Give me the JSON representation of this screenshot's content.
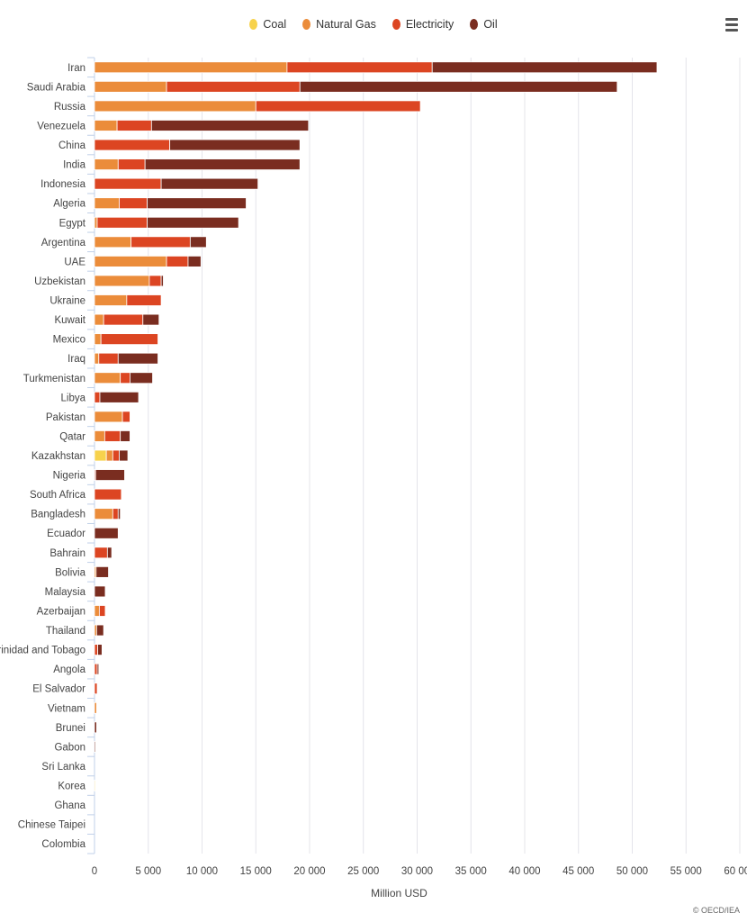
{
  "chart_data": {
    "type": "bar",
    "orientation": "horizontal",
    "stacked": true,
    "xlabel": "Million USD",
    "xlim": [
      0,
      60000
    ],
    "xticks": [
      "0",
      "5 000",
      "10 000",
      "15 000",
      "20 000",
      "25 000",
      "30 000",
      "35 000",
      "40 000",
      "45 000",
      "50 000",
      "55 000",
      "60 000"
    ],
    "grid": true,
    "legend_placement": "top",
    "categories": [
      "Iran",
      "Saudi Arabia",
      "Russia",
      "Venezuela",
      "China",
      "India",
      "Indonesia",
      "Algeria",
      "Egypt",
      "Argentina",
      "UAE",
      "Uzbekistan",
      "Ukraine",
      "Kuwait",
      "Mexico",
      "Iraq",
      "Turkmenistan",
      "Libya",
      "Pakistan",
      "Qatar",
      "Kazakhstan",
      "Nigeria",
      "South Africa",
      "Bangladesh",
      "Ecuador",
      "Bahrain",
      "Bolivia",
      "Malaysia",
      "Azerbaijan",
      "Thailand",
      "Trinidad and Tobago",
      "Angola",
      "El Salvador",
      "Vietnam",
      "Brunei",
      "Gabon",
      "Sri Lanka",
      "Korea",
      "Ghana",
      "Chinese Taipei",
      "Colombia"
    ],
    "series": [
      {
        "name": "Coal",
        "color": "#f7d24c",
        "values": [
          0,
          0,
          0,
          0,
          0,
          0,
          0,
          0,
          0,
          0,
          0,
          0,
          0,
          0,
          0,
          0,
          0,
          0,
          0,
          0,
          1100,
          0,
          0,
          0,
          0,
          0,
          0,
          0,
          0,
          0,
          0,
          0,
          0,
          0,
          0,
          0,
          0,
          50,
          0,
          0,
          0
        ]
      },
      {
        "name": "Natural Gas",
        "color": "#eb8c3a",
        "values": [
          17900,
          6700,
          15000,
          2100,
          0,
          2200,
          0,
          2300,
          250,
          3400,
          6700,
          5100,
          3000,
          850,
          600,
          400,
          2400,
          0,
          2600,
          950,
          600,
          0,
          0,
          1700,
          0,
          0,
          150,
          0,
          450,
          200,
          0,
          0,
          0,
          200,
          0,
          0,
          0,
          0,
          0,
          0,
          0
        ]
      },
      {
        "name": "Electricity",
        "color": "#dc4522",
        "values": [
          13500,
          12400,
          15300,
          3200,
          7000,
          2500,
          6200,
          2600,
          4650,
          5500,
          2000,
          1100,
          3200,
          3650,
          5300,
          1800,
          900,
          500,
          700,
          1450,
          600,
          100,
          2500,
          500,
          0,
          1200,
          0,
          0,
          550,
          0,
          300,
          250,
          250,
          0,
          0,
          0,
          0,
          0,
          0,
          0,
          0
        ]
      },
      {
        "name": "Oil",
        "color": "#7a2d20",
        "values": [
          20900,
          29500,
          0,
          14600,
          12100,
          14400,
          9000,
          9200,
          8500,
          1500,
          1200,
          200,
          0,
          1500,
          0,
          3700,
          2100,
          3600,
          0,
          900,
          800,
          2700,
          0,
          200,
          2200,
          400,
          1150,
          1000,
          0,
          650,
          400,
          150,
          0,
          0,
          200,
          100,
          0,
          0,
          0,
          0,
          0
        ]
      }
    ]
  },
  "credit": "© OECD/IEA"
}
